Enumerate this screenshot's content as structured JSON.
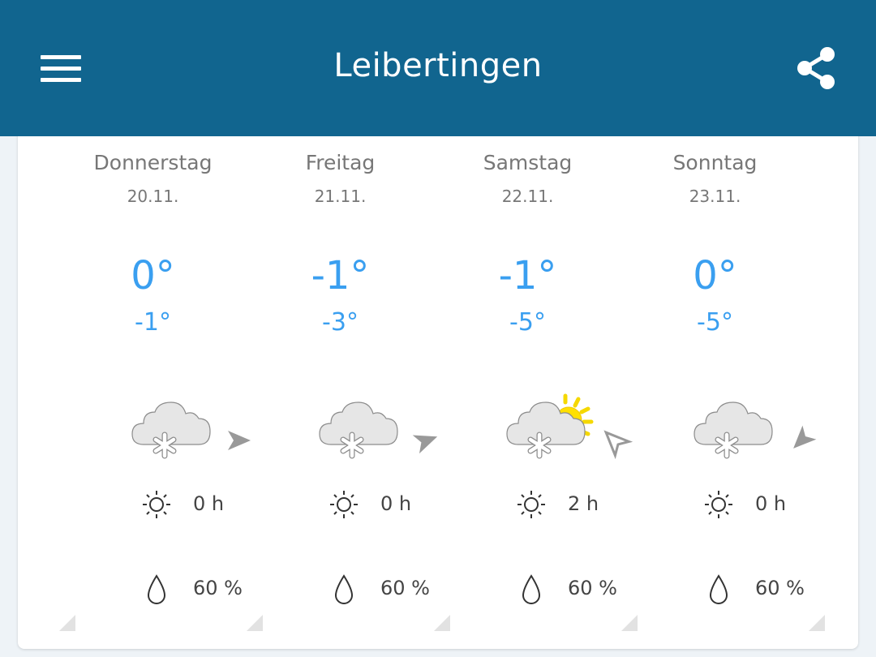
{
  "header": {
    "title": "Leibertingen",
    "menu_icon": "hamburger-icon",
    "share_icon": "share-icon",
    "color": "#11658f"
  },
  "days": [
    {
      "day": "Donnerstag",
      "date": "20.11.",
      "max": "0°",
      "min": "-1°",
      "weather": "snow-cloud",
      "sun": "0 h",
      "rain": "60 %",
      "wind_dir": "east"
    },
    {
      "day": "Freitag",
      "date": "21.11.",
      "max": "-1°",
      "min": "-3°",
      "weather": "snow-cloud",
      "sun": "0 h",
      "rain": "60 %",
      "wind_dir": "east-northeast"
    },
    {
      "day": "Samstag",
      "date": "22.11.",
      "max": "-1°",
      "min": "-5°",
      "weather": "snow-cloud-sun",
      "sun": "2 h",
      "rain": "60 %",
      "wind_dir": "northwest"
    },
    {
      "day": "Sonntag",
      "date": "23.11.",
      "max": "0°",
      "min": "-5°",
      "weather": "snow-cloud",
      "sun": "0 h",
      "rain": "60 %",
      "wind_dir": "southwest"
    }
  ]
}
